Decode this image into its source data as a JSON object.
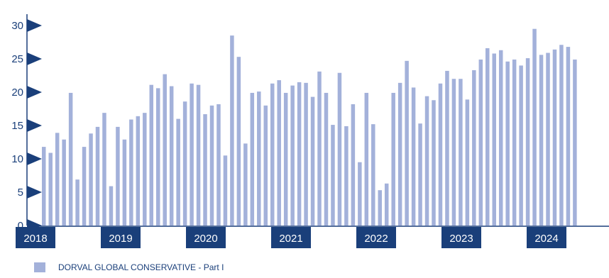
{
  "chart_data": {
    "type": "bar",
    "colors": {
      "bar": "#a3b1da",
      "axis": "#1a3f7a",
      "year_box": "#1a3f7a"
    },
    "ylim": [
      0,
      30
    ],
    "yticks": [
      0,
      5,
      10,
      15,
      20,
      25,
      30
    ],
    "year_labels": [
      "2018",
      "2019",
      "2020",
      "2021",
      "2022",
      "2023",
      "2024"
    ],
    "series": [
      {
        "name": "DORVAL GLOBAL CONSERVATIVE - Part I",
        "values": [
          11.8,
          10.9,
          13.9,
          12.9,
          19.9,
          6.9,
          11.8,
          13.8,
          14.8,
          16.9,
          5.9,
          14.8,
          12.9,
          15.9,
          16.4,
          16.9,
          21.1,
          20.6,
          22.7,
          20.9,
          16.0,
          18.6,
          21.3,
          21.1,
          16.7,
          18.0,
          18.2,
          10.5,
          28.5,
          25.3,
          12.3,
          19.9,
          20.1,
          18.0,
          21.3,
          21.8,
          19.9,
          21.0,
          21.5,
          21.4,
          19.3,
          23.1,
          19.9,
          15.1,
          22.9,
          14.9,
          18.2,
          9.5,
          19.9,
          15.2,
          5.3,
          6.3,
          19.9,
          21.4,
          24.7,
          20.7,
          15.3,
          19.4,
          18.8,
          21.3,
          23.2,
          22.0,
          22.0,
          18.9,
          23.3,
          24.9,
          26.6,
          25.8,
          26.3,
          24.6,
          24.9,
          24.0,
          25.1,
          29.5,
          25.6,
          25.9,
          26.4,
          27.1,
          26.8,
          24.9
        ]
      }
    ],
    "legend": {
      "position": "bottom-left"
    }
  }
}
